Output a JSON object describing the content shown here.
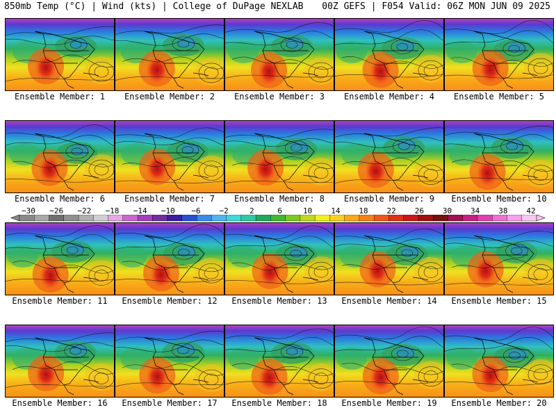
{
  "header": {
    "left": "850mb Temp (°C) | Wind (kts) | College of DuPage NEXLAB",
    "right": "00Z GEFS | F054 Valid: 06Z MON JUN 09 2025"
  },
  "panels": [
    {
      "label": "Ensemble Member: 1"
    },
    {
      "label": "Ensemble Member: 2"
    },
    {
      "label": "Ensemble Member: 3"
    },
    {
      "label": "Ensemble Member: 4"
    },
    {
      "label": "Ensemble Member: 5"
    },
    {
      "label": "Ensemble Member: 6"
    },
    {
      "label": "Ensemble Member: 7"
    },
    {
      "label": "Ensemble Member: 8"
    },
    {
      "label": "Ensemble Member: 9"
    },
    {
      "label": "Ensemble Member: 10"
    },
    {
      "label": "Ensemble Member: 11"
    },
    {
      "label": "Ensemble Member: 12"
    },
    {
      "label": "Ensemble Member: 13"
    },
    {
      "label": "Ensemble Member: 14"
    },
    {
      "label": "Ensemble Member: 15"
    },
    {
      "label": "Ensemble Member: 16"
    },
    {
      "label": "Ensemble Member: 17"
    },
    {
      "label": "Ensemble Member: 18"
    },
    {
      "label": "Ensemble Member: 19"
    },
    {
      "label": "Ensemble Member: 20"
    }
  ],
  "colorbar": {
    "labels": [
      "−30",
      "−26",
      "−22",
      "−18",
      "−14",
      "−10",
      "−6",
      "−2",
      "2",
      "6",
      "10",
      "14",
      "18",
      "22",
      "26",
      "30",
      "34",
      "38",
      "42"
    ],
    "colors": [
      "#8a8a8a",
      "#a8a8a8",
      "#707070",
      "#909090",
      "#b0b0b0",
      "#d0d0d0",
      "#e6a6e6",
      "#cc66cc",
      "#a040c0",
      "#7030a0",
      "#3a1ea0",
      "#2850d0",
      "#3a8ae8",
      "#50b4f0",
      "#40d8d8",
      "#30c8a0",
      "#20a860",
      "#40b830",
      "#80c820",
      "#c0d820",
      "#f0f020",
      "#f8d020",
      "#f8a818",
      "#f88018",
      "#f05818",
      "#e03018",
      "#c81818",
      "#a01010",
      "#781010",
      "#a01050",
      "#c82080",
      "#e040b0",
      "#f070d0",
      "#f8a0e8",
      "#f8c8f0"
    ]
  }
}
